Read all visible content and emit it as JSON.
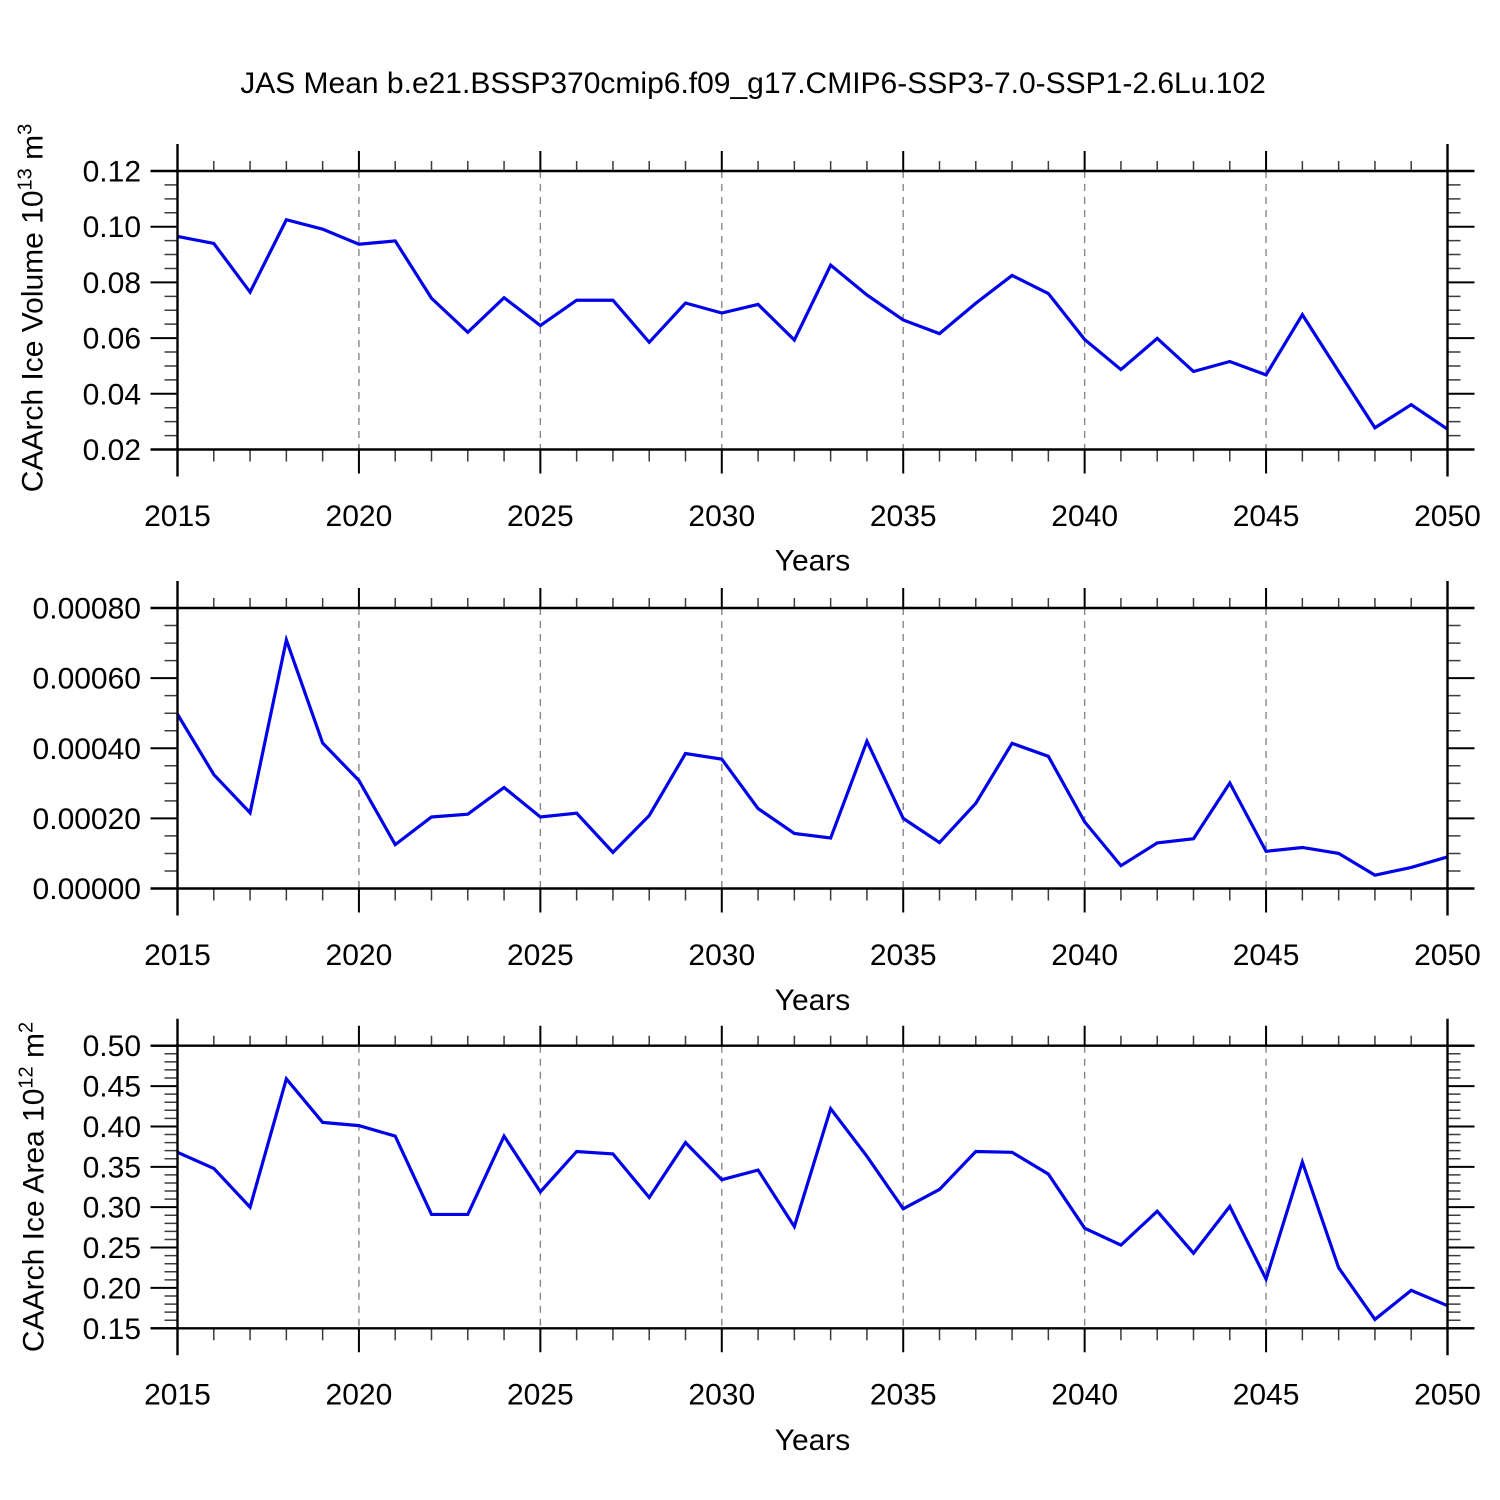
{
  "title": "JAS Mean b.e21.BSSP370cmip6.f09_g17.CMIP6-SSP3-7.0-SSP1-2.6Lu.102",
  "xlabel": "Years",
  "colors": {
    "line": "#0202e8",
    "frame": "#000000",
    "major_tick": "#000000",
    "minor_tick": "#3c3c3c",
    "grid": "#888888",
    "text": "#000000"
  },
  "x_axis": {
    "range": [
      2015,
      2050
    ],
    "major_ticks": [
      2015,
      2020,
      2025,
      2030,
      2035,
      2040,
      2045,
      2050
    ],
    "tick_labels": [
      "2015",
      "2020",
      "2025",
      "2030",
      "2035",
      "2040",
      "2045",
      "2050"
    ],
    "minor_step": 1,
    "gridline_years": [
      2020,
      2025,
      2030,
      2035,
      2040,
      2045
    ],
    "grid_style": "vertical-dashed"
  },
  "years": [
    2015,
    2016,
    2017,
    2018,
    2019,
    2020,
    2021,
    2022,
    2023,
    2024,
    2025,
    2026,
    2027,
    2028,
    2029,
    2030,
    2031,
    2032,
    2033,
    2034,
    2035,
    2036,
    2037,
    2038,
    2039,
    2040,
    2041,
    2042,
    2043,
    2044,
    2045,
    2046,
    2047,
    2048,
    2049,
    2050
  ],
  "chart_data": [
    {
      "type": "line",
      "name": "caarch-ice-volume",
      "ylabel": "CAArch Ice Volume 10^13 m^3",
      "ylabel_parts": [
        {
          "text": "CAArch Ice Volume 10",
          "super": false
        },
        {
          "text": "13",
          "super": true
        },
        {
          "text": " m",
          "super": false
        },
        {
          "text": "3",
          "super": true
        }
      ],
      "ylim": [
        0.02,
        0.12
      ],
      "y_major_ticks": [
        0.02,
        0.04,
        0.06,
        0.08,
        0.1,
        0.12
      ],
      "y_tick_labels": [
        "0.02",
        "0.04",
        "0.06",
        "0.08",
        "0.10",
        "0.12"
      ],
      "y_minor_step": 0.005,
      "values": [
        0.0965,
        0.094,
        0.0765,
        0.1025,
        0.0991,
        0.0937,
        0.0949,
        0.0743,
        0.0621,
        0.0745,
        0.0645,
        0.0736,
        0.0736,
        0.0585,
        0.0726,
        0.069,
        0.0721,
        0.0593,
        0.0862,
        0.0755,
        0.0665,
        0.0616,
        0.0725,
        0.0825,
        0.076,
        0.0595,
        0.0487,
        0.0599,
        0.048,
        0.0516,
        0.0468,
        0.0684,
        0.048,
        0.0278,
        0.0361,
        0.0273
      ]
    },
    {
      "type": "line",
      "name": "caarch-panel-2",
      "ylabel": null,
      "ylabel_parts": [],
      "ylim": [
        0.0,
        0.0008
      ],
      "y_major_ticks": [
        0.0,
        0.0002,
        0.0004,
        0.0006,
        0.0008
      ],
      "y_tick_labels": [
        "0.00000",
        "0.00020",
        "0.00040",
        "0.00060",
        "0.00080"
      ],
      "y_minor_step": 5e-05,
      "values": [
        0.000497,
        0.000325,
        0.000216,
        0.000709,
        0.000415,
        0.000308,
        0.000125,
        0.000204,
        0.000212,
        0.000288,
        0.000204,
        0.000215,
        0.000103,
        0.000208,
        0.000385,
        0.000369,
        0.000228,
        0.000157,
        0.000144,
        0.00042,
        0.0002,
        0.000131,
        0.000243,
        0.000414,
        0.000377,
        0.00019,
        6.5e-05,
        0.00013,
        0.000142,
        0.000301,
        0.000106,
        0.000117,
        0.0001,
        3.8e-05,
        6e-05,
        9e-05
      ]
    },
    {
      "type": "line",
      "name": "caarch-ice-area",
      "ylabel": "CAArch Ice Area 10^12 m^2",
      "ylabel_parts": [
        {
          "text": "CAArch Ice Area 10",
          "super": false
        },
        {
          "text": "12",
          "super": true
        },
        {
          "text": " m",
          "super": false
        },
        {
          "text": "2",
          "super": true
        }
      ],
      "ylim": [
        0.15,
        0.5
      ],
      "y_major_ticks": [
        0.15,
        0.2,
        0.25,
        0.3,
        0.35,
        0.4,
        0.45,
        0.5
      ],
      "y_tick_labels": [
        "0.15",
        "0.20",
        "0.25",
        "0.30",
        "0.35",
        "0.40",
        "0.45",
        "0.50"
      ],
      "y_minor_step": 0.01,
      "values": [
        0.368,
        0.348,
        0.3,
        0.459,
        0.405,
        0.401,
        0.388,
        0.291,
        0.291,
        0.388,
        0.319,
        0.369,
        0.366,
        0.312,
        0.38,
        0.334,
        0.346,
        0.276,
        0.422,
        0.363,
        0.298,
        0.322,
        0.369,
        0.368,
        0.341,
        0.274,
        0.253,
        0.295,
        0.243,
        0.301,
        0.211,
        0.356,
        0.225,
        0.161,
        0.197,
        0.178
      ]
    }
  ]
}
